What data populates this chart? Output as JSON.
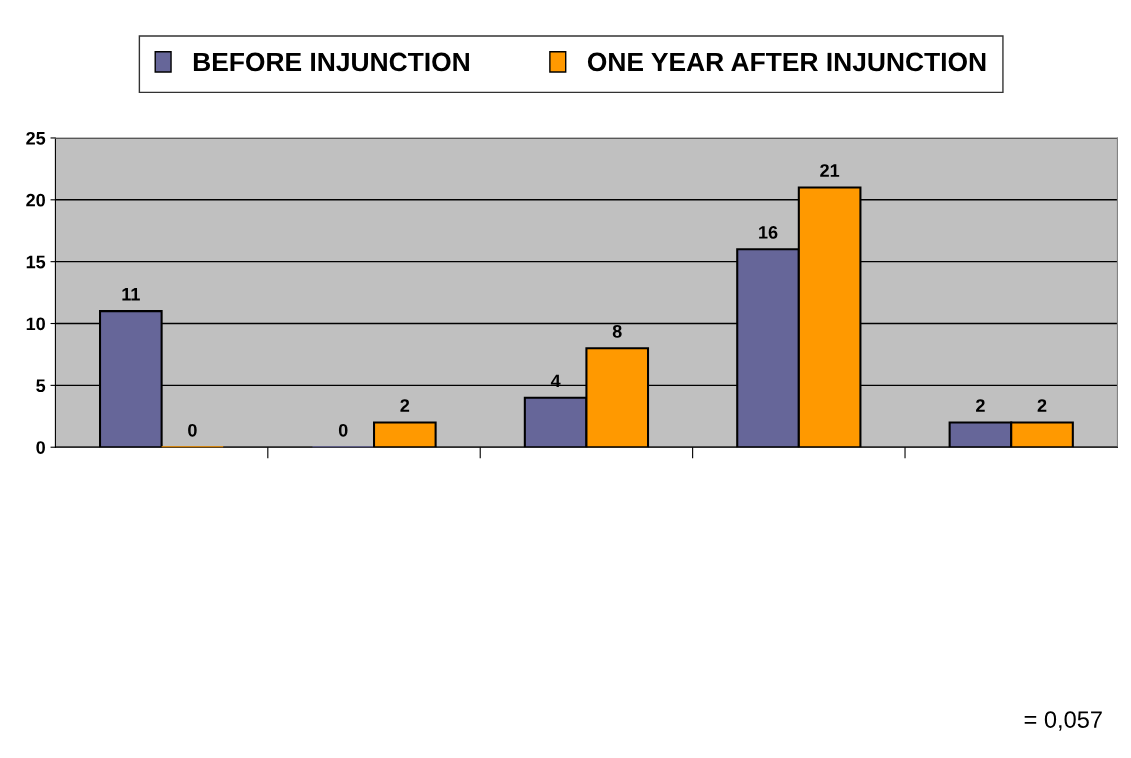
{
  "chart_data": {
    "type": "bar",
    "categories": [
      null,
      null,
      null,
      null,
      null
    ],
    "series": [
      {
        "name": "BEFORE INJUNCTION",
        "color": "#666699",
        "values": [
          11,
          0,
          4,
          16,
          2
        ]
      },
      {
        "name": "ONE YEAR AFTER INJUNCTION",
        "color": "#ff9900",
        "values": [
          0,
          2,
          8,
          21,
          2
        ]
      }
    ],
    "ylim": [
      0,
      25
    ],
    "yticks": [
      0,
      5,
      10,
      15,
      20,
      25
    ],
    "grid": "y",
    "legend": "top",
    "data_labels": true,
    "annotations": [
      "= 0,057"
    ]
  }
}
